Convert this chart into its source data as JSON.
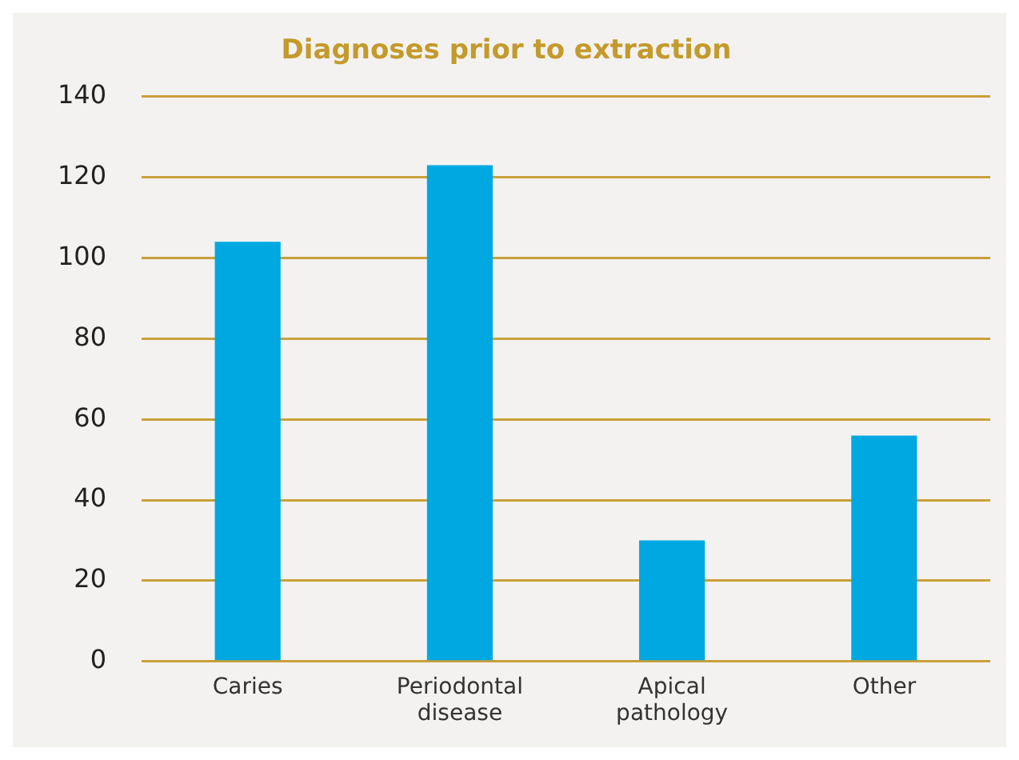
{
  "chart_data": {
    "type": "bar",
    "title": "Diagnoses prior to extraction",
    "categories": [
      "Caries",
      "Periodontal disease",
      "Apical pathology",
      "Other"
    ],
    "values": [
      104,
      123,
      30,
      56
    ],
    "color": "#00a8e2",
    "ylim": [
      0,
      140
    ],
    "yticks": [
      0,
      20,
      40,
      60,
      80,
      100,
      120,
      140
    ],
    "grid": "y",
    "legend": false
  }
}
